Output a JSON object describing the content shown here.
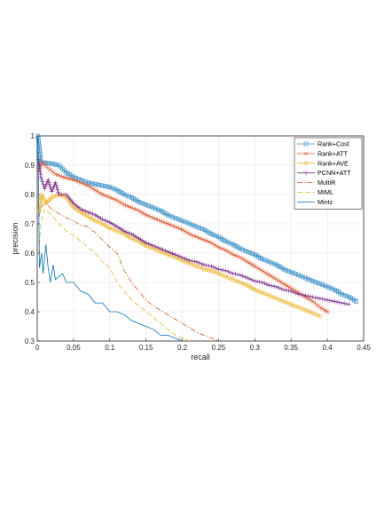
{
  "chart_data": {
    "type": "line",
    "title": "",
    "xlabel": "recall",
    "ylabel": "precision",
    "xlim": [
      0,
      0.45
    ],
    "ylim": [
      0.3,
      1.0
    ],
    "xticks": [
      "0",
      "0.05",
      "0.1",
      "0.15",
      "0.2",
      "0.25",
      "0.3",
      "0.35",
      "0.4",
      "0.45"
    ],
    "yticks": [
      "0.3",
      "0.4",
      "0.5",
      "0.6",
      "0.7",
      "0.8",
      "0.9",
      "1"
    ],
    "grid": true,
    "legend_position": "top-right",
    "series": [
      {
        "name": "Rank+Cost",
        "color": "#2e8bc8",
        "marker": "square",
        "dash": "",
        "points": [
          [
            0.001,
            1.0
          ],
          [
            0.005,
            0.91
          ],
          [
            0.02,
            0.905
          ],
          [
            0.03,
            0.9
          ],
          [
            0.04,
            0.875
          ],
          [
            0.05,
            0.86
          ],
          [
            0.06,
            0.85
          ],
          [
            0.07,
            0.84
          ],
          [
            0.08,
            0.835
          ],
          [
            0.09,
            0.83
          ],
          [
            0.1,
            0.825
          ],
          [
            0.11,
            0.815
          ],
          [
            0.12,
            0.8
          ],
          [
            0.13,
            0.79
          ],
          [
            0.14,
            0.775
          ],
          [
            0.15,
            0.765
          ],
          [
            0.16,
            0.755
          ],
          [
            0.17,
            0.745
          ],
          [
            0.18,
            0.73
          ],
          [
            0.19,
            0.72
          ],
          [
            0.2,
            0.71
          ],
          [
            0.21,
            0.7
          ],
          [
            0.22,
            0.69
          ],
          [
            0.23,
            0.68
          ],
          [
            0.24,
            0.665
          ],
          [
            0.25,
            0.655
          ],
          [
            0.26,
            0.64
          ],
          [
            0.27,
            0.63
          ],
          [
            0.28,
            0.615
          ],
          [
            0.29,
            0.605
          ],
          [
            0.3,
            0.595
          ],
          [
            0.31,
            0.58
          ],
          [
            0.32,
            0.57
          ],
          [
            0.33,
            0.56
          ],
          [
            0.34,
            0.545
          ],
          [
            0.35,
            0.535
          ],
          [
            0.36,
            0.525
          ],
          [
            0.37,
            0.515
          ],
          [
            0.38,
            0.505
          ],
          [
            0.39,
            0.495
          ],
          [
            0.4,
            0.485
          ],
          [
            0.41,
            0.475
          ],
          [
            0.42,
            0.46
          ],
          [
            0.43,
            0.45
          ],
          [
            0.44,
            0.435
          ]
        ]
      },
      {
        "name": "Rank+ATT",
        "color": "#e4572e",
        "marker": "x",
        "dash": "",
        "points": [
          [
            0.002,
            0.88
          ],
          [
            0.006,
            0.91
          ],
          [
            0.015,
            0.89
          ],
          [
            0.025,
            0.87
          ],
          [
            0.035,
            0.86
          ],
          [
            0.05,
            0.85
          ],
          [
            0.06,
            0.84
          ],
          [
            0.07,
            0.83
          ],
          [
            0.08,
            0.815
          ],
          [
            0.09,
            0.8
          ],
          [
            0.1,
            0.79
          ],
          [
            0.11,
            0.78
          ],
          [
            0.12,
            0.765
          ],
          [
            0.13,
            0.755
          ],
          [
            0.14,
            0.745
          ],
          [
            0.15,
            0.73
          ],
          [
            0.16,
            0.72
          ],
          [
            0.17,
            0.71
          ],
          [
            0.18,
            0.7
          ],
          [
            0.19,
            0.69
          ],
          [
            0.2,
            0.68
          ],
          [
            0.21,
            0.665
          ],
          [
            0.22,
            0.655
          ],
          [
            0.23,
            0.645
          ],
          [
            0.24,
            0.635
          ],
          [
            0.25,
            0.62
          ],
          [
            0.26,
            0.61
          ],
          [
            0.27,
            0.595
          ],
          [
            0.28,
            0.585
          ],
          [
            0.29,
            0.57
          ],
          [
            0.3,
            0.555
          ],
          [
            0.31,
            0.54
          ],
          [
            0.32,
            0.525
          ],
          [
            0.33,
            0.51
          ],
          [
            0.34,
            0.495
          ],
          [
            0.35,
            0.48
          ],
          [
            0.36,
            0.465
          ],
          [
            0.37,
            0.45
          ],
          [
            0.38,
            0.435
          ],
          [
            0.39,
            0.415
          ],
          [
            0.4,
            0.4
          ]
        ]
      },
      {
        "name": "Rank+AVE",
        "color": "#eeb31f",
        "marker": "circle",
        "dash": "",
        "points": [
          [
            0.002,
            0.74
          ],
          [
            0.006,
            0.8
          ],
          [
            0.012,
            0.77
          ],
          [
            0.02,
            0.79
          ],
          [
            0.03,
            0.8
          ],
          [
            0.04,
            0.79
          ],
          [
            0.05,
            0.755
          ],
          [
            0.06,
            0.74
          ],
          [
            0.07,
            0.725
          ],
          [
            0.08,
            0.71
          ],
          [
            0.09,
            0.7
          ],
          [
            0.1,
            0.685
          ],
          [
            0.11,
            0.675
          ],
          [
            0.12,
            0.665
          ],
          [
            0.13,
            0.65
          ],
          [
            0.14,
            0.64
          ],
          [
            0.15,
            0.625
          ],
          [
            0.16,
            0.615
          ],
          [
            0.17,
            0.605
          ],
          [
            0.18,
            0.595
          ],
          [
            0.19,
            0.585
          ],
          [
            0.2,
            0.575
          ],
          [
            0.21,
            0.565
          ],
          [
            0.22,
            0.555
          ],
          [
            0.23,
            0.545
          ],
          [
            0.24,
            0.54
          ],
          [
            0.25,
            0.53
          ],
          [
            0.26,
            0.52
          ],
          [
            0.27,
            0.51
          ],
          [
            0.28,
            0.5
          ],
          [
            0.29,
            0.49
          ],
          [
            0.3,
            0.475
          ],
          [
            0.31,
            0.465
          ],
          [
            0.32,
            0.455
          ],
          [
            0.33,
            0.445
          ],
          [
            0.34,
            0.435
          ],
          [
            0.35,
            0.425
          ],
          [
            0.36,
            0.415
          ],
          [
            0.37,
            0.405
          ],
          [
            0.38,
            0.395
          ],
          [
            0.39,
            0.385
          ]
        ]
      },
      {
        "name": "PCNN+ATT",
        "color": "#7e2f8e",
        "marker": "plus",
        "dash": "",
        "points": [
          [
            0.002,
            0.92
          ],
          [
            0.005,
            0.86
          ],
          [
            0.01,
            0.82
          ],
          [
            0.015,
            0.85
          ],
          [
            0.02,
            0.81
          ],
          [
            0.025,
            0.84
          ],
          [
            0.03,
            0.8
          ],
          [
            0.04,
            0.8
          ],
          [
            0.05,
            0.77
          ],
          [
            0.06,
            0.75
          ],
          [
            0.07,
            0.74
          ],
          [
            0.08,
            0.73
          ],
          [
            0.09,
            0.715
          ],
          [
            0.1,
            0.705
          ],
          [
            0.11,
            0.69
          ],
          [
            0.12,
            0.675
          ],
          [
            0.13,
            0.665
          ],
          [
            0.14,
            0.65
          ],
          [
            0.15,
            0.635
          ],
          [
            0.16,
            0.625
          ],
          [
            0.17,
            0.615
          ],
          [
            0.18,
            0.605
          ],
          [
            0.19,
            0.595
          ],
          [
            0.2,
            0.585
          ],
          [
            0.21,
            0.575
          ],
          [
            0.22,
            0.57
          ],
          [
            0.23,
            0.56
          ],
          [
            0.24,
            0.555
          ],
          [
            0.25,
            0.545
          ],
          [
            0.26,
            0.54
          ],
          [
            0.27,
            0.53
          ],
          [
            0.28,
            0.525
          ],
          [
            0.29,
            0.515
          ],
          [
            0.3,
            0.505
          ],
          [
            0.31,
            0.5
          ],
          [
            0.32,
            0.49
          ],
          [
            0.33,
            0.485
          ],
          [
            0.34,
            0.475
          ],
          [
            0.35,
            0.47
          ],
          [
            0.36,
            0.46
          ],
          [
            0.37,
            0.455
          ],
          [
            0.38,
            0.45
          ],
          [
            0.39,
            0.445
          ],
          [
            0.4,
            0.44
          ],
          [
            0.41,
            0.435
          ],
          [
            0.42,
            0.43
          ],
          [
            0.43,
            0.425
          ]
        ]
      },
      {
        "name": "MultiR",
        "color": "#d95319",
        "marker": "",
        "dash": "6,2,1.5,2",
        "points": [
          [
            0.002,
            0.72
          ],
          [
            0.006,
            0.76
          ],
          [
            0.012,
            0.77
          ],
          [
            0.02,
            0.75
          ],
          [
            0.03,
            0.735
          ],
          [
            0.04,
            0.72
          ],
          [
            0.05,
            0.71
          ],
          [
            0.06,
            0.695
          ],
          [
            0.07,
            0.69
          ],
          [
            0.08,
            0.67
          ],
          [
            0.09,
            0.645
          ],
          [
            0.1,
            0.62
          ],
          [
            0.11,
            0.6
          ],
          [
            0.12,
            0.54
          ],
          [
            0.13,
            0.5
          ],
          [
            0.14,
            0.47
          ],
          [
            0.15,
            0.44
          ],
          [
            0.16,
            0.42
          ],
          [
            0.17,
            0.405
          ],
          [
            0.18,
            0.39
          ],
          [
            0.19,
            0.375
          ],
          [
            0.2,
            0.36
          ],
          [
            0.21,
            0.345
          ],
          [
            0.22,
            0.33
          ],
          [
            0.23,
            0.32
          ],
          [
            0.24,
            0.31
          ],
          [
            0.25,
            0.3
          ]
        ]
      },
      {
        "name": "MIML",
        "color": "#eeb31f",
        "marker": "",
        "dash": "6,3",
        "points": [
          [
            0.002,
            0.6
          ],
          [
            0.005,
            0.7
          ],
          [
            0.01,
            0.75
          ],
          [
            0.015,
            0.74
          ],
          [
            0.02,
            0.73
          ],
          [
            0.03,
            0.7
          ],
          [
            0.04,
            0.675
          ],
          [
            0.05,
            0.66
          ],
          [
            0.06,
            0.64
          ],
          [
            0.07,
            0.62
          ],
          [
            0.08,
            0.6
          ],
          [
            0.09,
            0.57
          ],
          [
            0.1,
            0.55
          ],
          [
            0.11,
            0.5
          ],
          [
            0.12,
            0.47
          ],
          [
            0.13,
            0.44
          ],
          [
            0.14,
            0.42
          ],
          [
            0.15,
            0.4
          ],
          [
            0.16,
            0.38
          ],
          [
            0.17,
            0.36
          ],
          [
            0.18,
            0.34
          ],
          [
            0.19,
            0.32
          ],
          [
            0.2,
            0.31
          ],
          [
            0.21,
            0.3
          ]
        ]
      },
      {
        "name": "Mintz",
        "color": "#0072bd",
        "marker": "",
        "dash": "",
        "points": [
          [
            0.001,
            0.99
          ],
          [
            0.003,
            0.55
          ],
          [
            0.006,
            0.6
          ],
          [
            0.008,
            0.53
          ],
          [
            0.012,
            0.63
          ],
          [
            0.015,
            0.55
          ],
          [
            0.018,
            0.5
          ],
          [
            0.022,
            0.56
          ],
          [
            0.025,
            0.51
          ],
          [
            0.03,
            0.52
          ],
          [
            0.035,
            0.53
          ],
          [
            0.04,
            0.5
          ],
          [
            0.05,
            0.5
          ],
          [
            0.06,
            0.47
          ],
          [
            0.07,
            0.46
          ],
          [
            0.08,
            0.43
          ],
          [
            0.09,
            0.43
          ],
          [
            0.1,
            0.4
          ],
          [
            0.11,
            0.4
          ],
          [
            0.12,
            0.39
          ],
          [
            0.13,
            0.37
          ],
          [
            0.14,
            0.36
          ],
          [
            0.15,
            0.35
          ],
          [
            0.16,
            0.34
          ],
          [
            0.17,
            0.32
          ],
          [
            0.18,
            0.32
          ],
          [
            0.19,
            0.31
          ],
          [
            0.2,
            0.3
          ]
        ]
      }
    ]
  }
}
